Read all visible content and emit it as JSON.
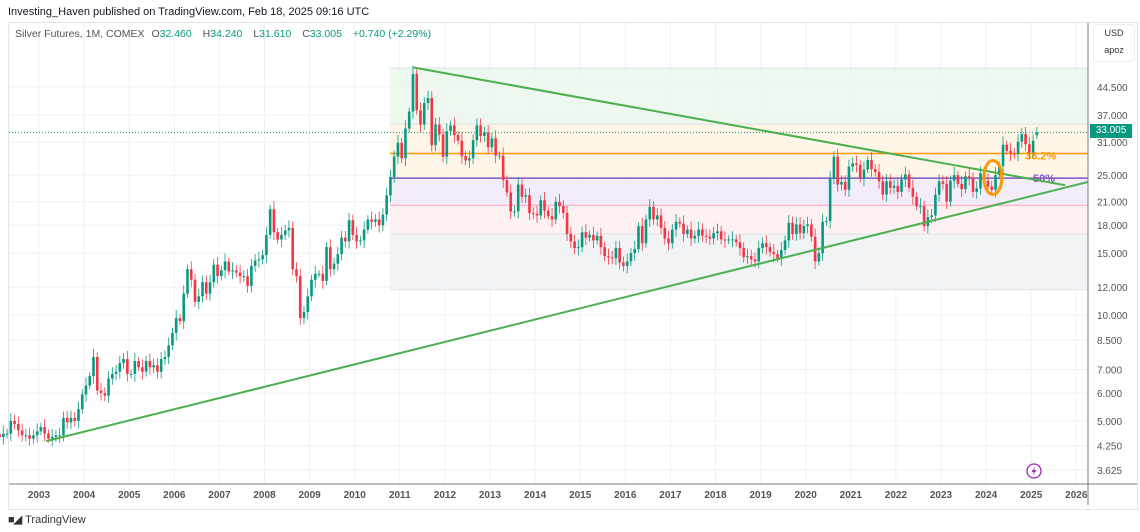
{
  "publisher_line": "Investing_Haven published on TradingView.com, Feb 18, 2025 09:16 UTC",
  "legend": {
    "symbol": "Silver Futures, 1M, COMEX",
    "open_label": "O",
    "open": "32.460",
    "high_label": "H",
    "high": "34.240",
    "low_label": "L",
    "low": "31.610",
    "close_label": "C",
    "close": "33.005",
    "change": "+0.740 (+2.29%)"
  },
  "currency": "USD",
  "scale_mode": "apoz",
  "last_price": "33.005",
  "logo_text": "TradingView",
  "icons": {
    "logo": "tradingview-logo-icon",
    "event": "lightning-icon"
  },
  "colors": {
    "up": "#089981",
    "down": "#f23645",
    "trendline": "#4caf50",
    "fib_382": "#ff9800",
    "fib_50": "#7e57c2",
    "ellipse": "#ff9800",
    "event": "#9c27b0"
  },
  "chart_data": {
    "type": "candlestick",
    "scale": "log",
    "ylim": [
      3.4,
      52
    ],
    "xlim": [
      "2002-02",
      "2026-06"
    ],
    "grid": true,
    "y_ticks": [
      "3.625",
      "4.250",
      "5.000",
      "6.000",
      "7.000",
      "8.500",
      "10.000",
      "12.000",
      "15.000",
      "18.000",
      "21.000",
      "25.000",
      "31.000",
      "37.000",
      "44.500"
    ],
    "x_ticks": [
      "2003",
      "2004",
      "2005",
      "2006",
      "2007",
      "2008",
      "2009",
      "2010",
      "2011",
      "2012",
      "2013",
      "2014",
      "2015",
      "2016",
      "2017",
      "2018",
      "2019",
      "2020",
      "2021",
      "2022",
      "2023",
      "2024",
      "2025",
      "2026"
    ],
    "start": "2002-02",
    "monthly_closes": [
      4.5,
      4.6,
      4.6,
      5.0,
      4.9,
      4.7,
      4.55,
      4.55,
      4.45,
      4.55,
      4.67,
      4.8,
      4.6,
      4.45,
      4.5,
      4.55,
      4.55,
      5.1,
      4.95,
      5.1,
      5.0,
      5.4,
      5.95,
      6.3,
      6.7,
      7.6,
      6.1,
      6.0,
      5.9,
      6.6,
      6.8,
      6.9,
      7.3,
      7.5,
      6.8,
      6.8,
      7.4,
      7.1,
      6.9,
      7.4,
      7.1,
      7.2,
      6.9,
      7.5,
      7.6,
      8.2,
      8.9,
      9.8,
      9.6,
      11.5,
      13.5,
      12.6,
      10.9,
      11.3,
      12.4,
      11.5,
      12.4,
      13.9,
      12.9,
      13.4,
      14.2,
      13.3,
      13.4,
      13.2,
      12.9,
      12.9,
      12.1,
      13.8,
      14.3,
      14.4,
      14.8,
      16.9,
      20.0,
      17.2,
      16.4,
      16.9,
      17.4,
      17.7,
      13.5,
      12.9,
      9.8,
      10.2,
      11.3,
      12.6,
      13.1,
      13.1,
      12.5,
      15.6,
      13.5,
      14.0,
      14.9,
      16.6,
      16.2,
      18.6,
      16.9,
      16.2,
      16.3,
      17.5,
      18.7,
      18.4,
      18.7,
      18.0,
      19.3,
      21.9,
      24.7,
      28.2,
      30.9,
      27.9,
      33.9,
      37.9,
      48.5,
      38.2,
      34.8,
      40.1,
      41.4,
      30.4,
      34.8,
      32.6,
      28.2,
      33.3,
      34.6,
      32.5,
      31.3,
      28.3,
      27.5,
      27.9,
      31.4,
      34.6,
      32.3,
      33.0,
      30.0,
      31.8,
      28.4,
      28.4,
      24.2,
      22.3,
      19.7,
      19.7,
      23.5,
      21.7,
      21.9,
      19.5,
      19.4,
      19.2,
      21.2,
      19.8,
      19.1,
      18.7,
      21.0,
      20.4,
      19.5,
      17.0,
      16.2,
      15.5,
      15.6,
      17.2,
      16.6,
      16.9,
      16.3,
      16.8,
      15.6,
      14.7,
      14.6,
      14.5,
      15.5,
      14.1,
      13.8,
      14.2,
      15.0,
      15.4,
      17.9,
      16.0,
      18.7,
      20.3,
      18.7,
      19.2,
      17.7,
      16.5,
      16.0,
      17.5,
      18.4,
      18.2,
      17.0,
      17.5,
      16.5,
      16.8,
      17.5,
      16.8,
      16.7,
      16.5,
      17.1,
      17.3,
      16.4,
      16.3,
      16.4,
      16.4,
      16.1,
      15.5,
      14.6,
      14.7,
      14.4,
      14.2,
      15.5,
      16.0,
      15.6,
      15.1,
      14.9,
      14.5,
      15.3,
      16.3,
      18.3,
      17.0,
      18.1,
      17.1,
      17.9,
      18.1,
      16.7,
      14.2,
      15.0,
      18.4,
      18.5,
      24.4,
      28.2,
      23.5,
      23.9,
      22.7,
      26.4,
      27.0,
      26.7,
      24.5,
      25.9,
      27.6,
      26.0,
      25.5,
      24.0,
      22.0,
      24.0,
      23.0,
      23.3,
      22.4,
      24.3,
      25.1,
      23.0,
      21.7,
      20.4,
      20.4,
      17.9,
      19.0,
      19.2,
      22.0,
      24.0,
      23.6,
      21.0,
      24.1,
      25.0,
      23.6,
      22.8,
      24.8,
      24.5,
      22.4,
      22.9,
      25.3,
      24.1,
      23.2,
      22.7,
      25.0,
      26.5,
      30.5,
      29.3,
      28.8,
      28.7,
      31.1,
      32.7,
      30.6,
      29.0,
      31.3,
      33.005
    ],
    "fib_retracement": {
      "start": "2011-01",
      "levels": [
        {
          "price": 50.4,
          "fill": "#e8f5e9"
        },
        {
          "price": 34.9,
          "fill": "#fff3e0"
        },
        {
          "price": 28.8,
          "label": "38.2%",
          "line": "#ff9800",
          "fill": "#fff3e0"
        },
        {
          "price": 24.5,
          "label": "50%",
          "line": "#7e57c2",
          "fill": "#ede7f6"
        },
        {
          "price": 20.5,
          "line": "#f8bbd0",
          "fill": "#fdecee"
        },
        {
          "price": 17.0,
          "fill": "#eceff1"
        },
        {
          "price": 11.8
        }
      ]
    },
    "trendlines": [
      {
        "from": [
          2011.29,
          50.6
        ],
        "to": [
          2025.75,
          23.4
        ]
      },
      {
        "from": [
          2003.16,
          4.38
        ],
        "to": [
          2026.26,
          23.9
        ]
      }
    ],
    "ellipse": {
      "center": [
        2024.15,
        24.6
      ]
    }
  }
}
